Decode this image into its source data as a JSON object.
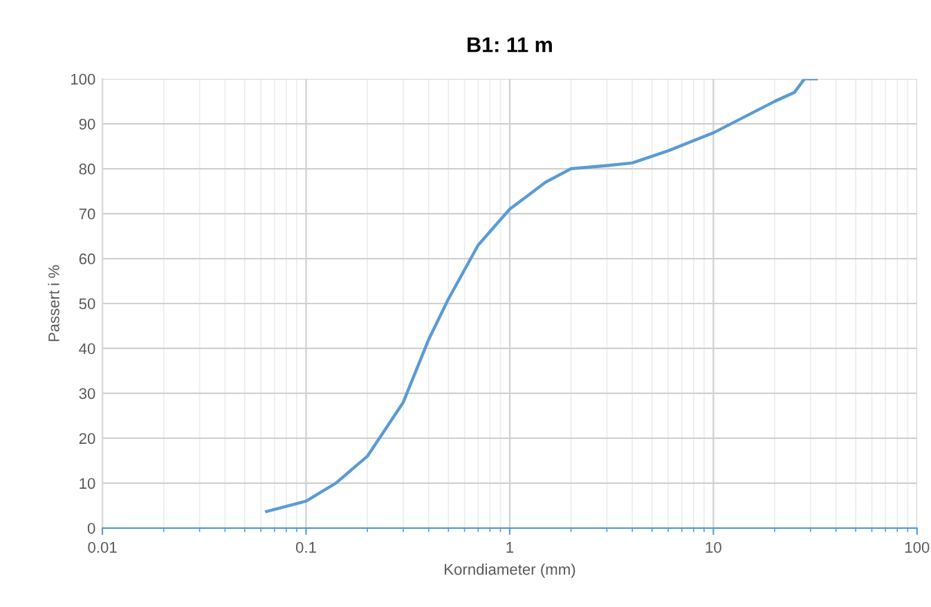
{
  "chart_data": {
    "type": "line",
    "title": "B1: 11 m",
    "xlabel": "Korndiameter (mm)",
    "ylabel": "Passert i %",
    "log": "x",
    "x": [
      0.064,
      0.1,
      0.14,
      0.2,
      0.3,
      0.4,
      0.5,
      0.7,
      1,
      1.5,
      2,
      3,
      4,
      6,
      10,
      20,
      25,
      28,
      32
    ],
    "series": [
      {
        "color": "#5b9bd5",
        "values": [
          3.7,
          6,
          10,
          16,
          28,
          42,
          51,
          63,
          71,
          77,
          80,
          80.7,
          81.3,
          84,
          88,
          95,
          97,
          100,
          100
        ]
      }
    ],
    "xlim": [
      0.01,
      100
    ],
    "xticks": [
      0.01,
      0.1,
      1,
      10,
      100
    ],
    "ylim": [
      0,
      100
    ],
    "yticks": [
      0,
      10,
      20,
      30,
      40,
      50,
      60,
      70,
      80,
      90,
      100
    ],
    "grid": true,
    "marker": "none",
    "line_style": "solid",
    "legend": false
  }
}
